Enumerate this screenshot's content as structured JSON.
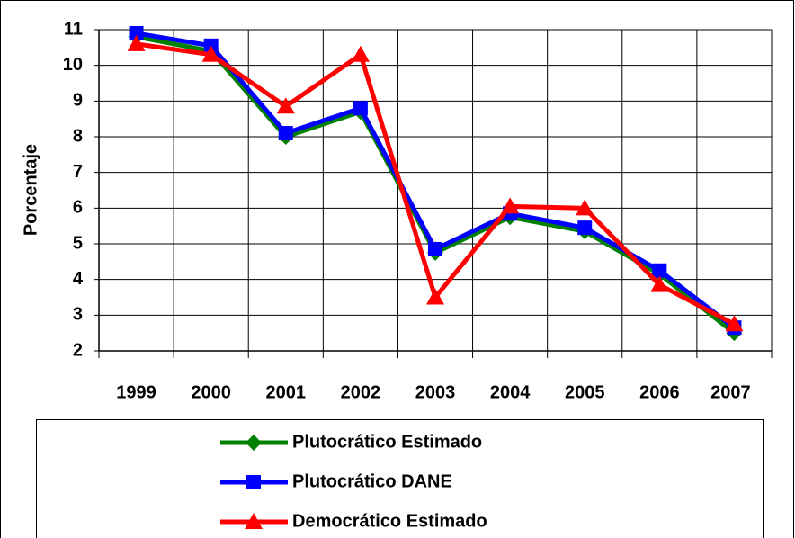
{
  "chart_data": {
    "type": "line",
    "y_label": "Porcentaje",
    "categories": [
      "1999",
      "2000",
      "2001",
      "2002",
      "2003",
      "2004",
      "2005",
      "2006",
      "2007"
    ],
    "series": [
      {
        "name": "Plutocrático Estimado",
        "color": "#008000",
        "marker": "diamond",
        "values": [
          10.8,
          10.4,
          8.0,
          8.7,
          4.75,
          5.75,
          5.35,
          4.15,
          2.5
        ]
      },
      {
        "name": "Plutocrático DANE",
        "color": "#0000ff",
        "marker": "square",
        "values": [
          10.9,
          10.55,
          8.1,
          8.8,
          4.85,
          5.85,
          5.45,
          4.25,
          2.65
        ]
      },
      {
        "name": "Democrático Estimado",
        "color": "#ff0000",
        "marker": "triangle",
        "values": [
          10.6,
          10.3,
          8.85,
          10.3,
          3.5,
          6.05,
          6.0,
          3.85,
          2.75
        ]
      }
    ],
    "ylim": [
      2,
      11
    ],
    "yticks": [
      2,
      3,
      4,
      5,
      6,
      7,
      8,
      9,
      10,
      11
    ],
    "grid": true,
    "legend": "bottom"
  }
}
